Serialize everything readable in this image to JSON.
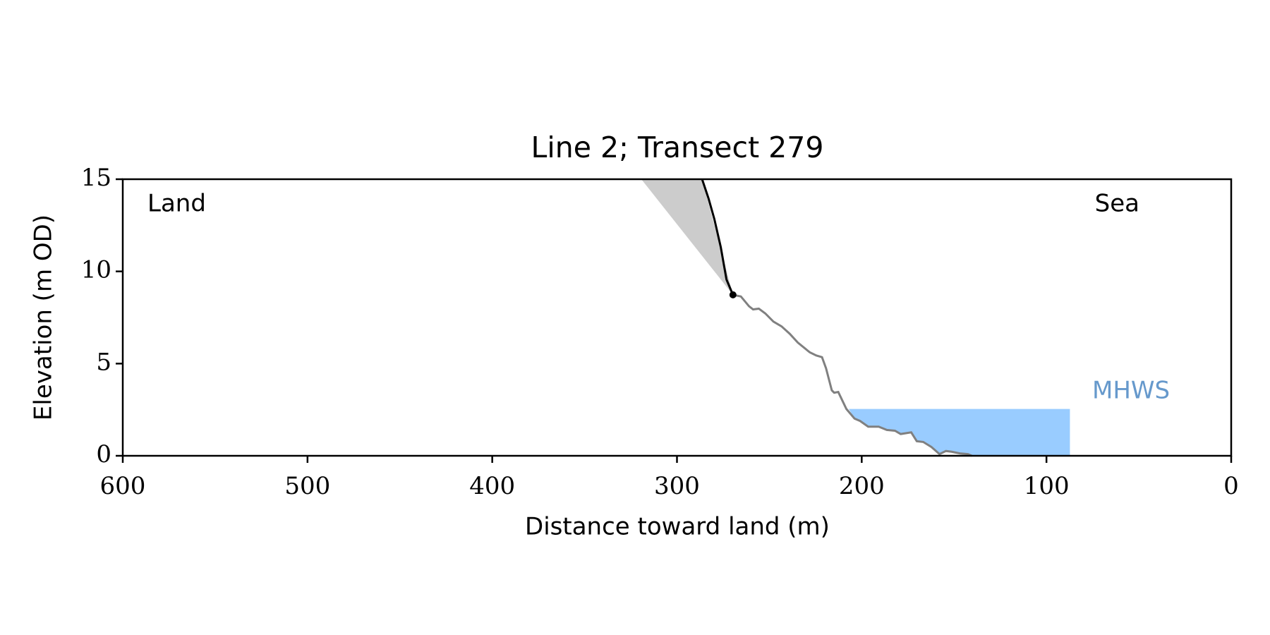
{
  "chart_data": {
    "type": "line",
    "title": "Line 2; Transect 279",
    "xlabel": "Distance toward land (m)",
    "ylabel": "Elevation (m OD)",
    "xlim": [
      600,
      0
    ],
    "ylim": [
      0,
      15
    ],
    "xticks": [
      600,
      500,
      400,
      300,
      200,
      100,
      0
    ],
    "yticks": [
      0,
      5,
      10,
      15
    ],
    "annotations": [
      "Land",
      "Sea"
    ],
    "series": [
      {
        "color": "#808080",
        "x": [
          269.7,
          265.4,
          261.0,
          258.8,
          255.7,
          252.2,
          247.8,
          243.4,
          239.0,
          234.6,
          228.1,
          224.6,
          221.5,
          219.3,
          216.2,
          214.9,
          212.7,
          208.3,
          203.9,
          200.9,
          196.5,
          190.8,
          186.4,
          182.0,
          178.9,
          173.2,
          170.2,
          166.7,
          162.3,
          157.9,
          154.4,
          151.3,
          146.9,
          142.5,
          140.4
        ],
        "values": [
          8.73,
          8.64,
          8.11,
          7.94,
          7.98,
          7.72,
          7.28,
          7.02,
          6.62,
          6.14,
          5.61,
          5.44,
          5.35,
          4.74,
          3.55,
          3.42,
          3.46,
          2.54,
          2.02,
          1.89,
          1.58,
          1.58,
          1.4,
          1.36,
          1.18,
          1.27,
          0.79,
          0.75,
          0.48,
          0.09,
          0.26,
          0.22,
          0.13,
          0.09,
          0.0
        ]
      },
      {
        "color": "#000000",
        "x": [
          286.4,
          282.9,
          279.8,
          276.3,
          273.2,
          269.7
        ],
        "values": [
          15,
          13.95,
          12.85,
          11.32,
          9.56,
          8.73
        ]
      }
    ],
    "marker": {
      "x": 269.7,
      "y": 8.73,
      "color": "#000000"
    },
    "shade": {
      "x": [
        319.3,
        286.4,
        269.7
      ],
      "y": [
        15,
        15,
        8.73
      ],
      "color": "#cccccc"
    },
    "mhws": {
      "label": "MHWS",
      "level": 2.54,
      "x": [
        207.0,
        87.3
      ],
      "color": "#99ccff",
      "label_color": "#6699cc"
    }
  }
}
